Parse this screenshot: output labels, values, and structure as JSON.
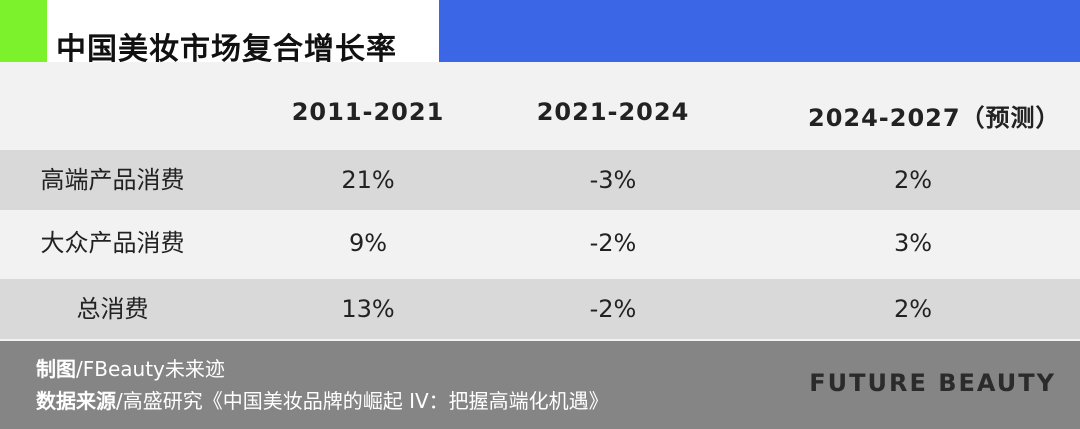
{
  "title": "中国美妆市场复合增长率",
  "colors": {
    "green_accent": "#7cf22c",
    "blue_accent": "#3b67e6",
    "footer_bg": "#858585",
    "row_dark": "#d9d9d9",
    "row_light": "#f2f2f2"
  },
  "table": {
    "columns": [
      "2011-2021",
      "2021-2024",
      "2024-2027（预测）"
    ],
    "rows": [
      {
        "label": "高端产品消费",
        "values": [
          "21%",
          "-3%",
          "2%"
        ]
      },
      {
        "label": "大众产品消费",
        "values": [
          "9%",
          "-2%",
          "3%"
        ]
      },
      {
        "label": "总消费",
        "values": [
          "13%",
          "-2%",
          "2%"
        ]
      }
    ]
  },
  "footer": {
    "maker_label": "制图",
    "maker_value": "/FBeauty未来迹",
    "source_label": "数据来源",
    "source_value": "/高盛研究《中国美妆品牌的崛起 IV：把握高端化机遇》",
    "brand": "FUTURE BEAUTY"
  }
}
